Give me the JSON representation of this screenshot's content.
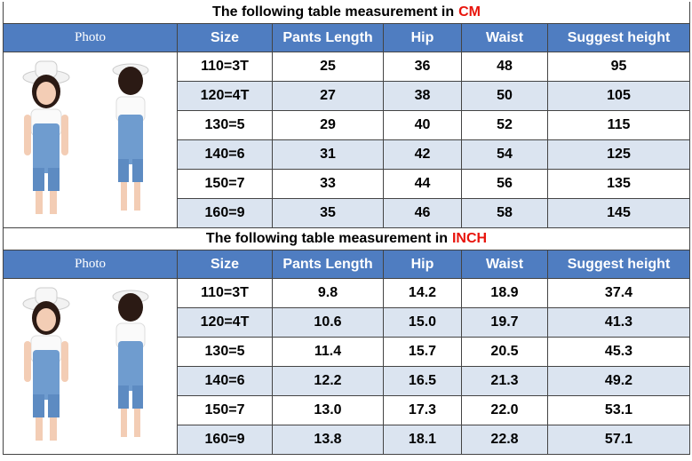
{
  "sections": [
    {
      "title": "The following table measurement in",
      "unit": "CM",
      "header": [
        "Photo",
        "Size",
        "Pants Length",
        "Hip",
        "Waist",
        "Suggest height"
      ],
      "rows": [
        [
          "110=3T",
          "25",
          "36",
          "48",
          "95"
        ],
        [
          "120=4T",
          "27",
          "38",
          "50",
          "105"
        ],
        [
          "130=5",
          "29",
          "40",
          "52",
          "115"
        ],
        [
          "140=6",
          "31",
          "42",
          "54",
          "125"
        ],
        [
          "150=7",
          "33",
          "44",
          "56",
          "135"
        ],
        [
          "160=9",
          "35",
          "46",
          "58",
          "145"
        ]
      ]
    },
    {
      "title": "The following table measurement in",
      "unit": "INCH",
      "header": [
        "Photo",
        "Size",
        "Pants Length",
        "Hip",
        "Waist",
        "Suggest height"
      ],
      "rows": [
        [
          "110=3T",
          "9.8",
          "14.2",
          "18.9",
          "37.4"
        ],
        [
          "120=4T",
          "10.6",
          "15.0",
          "19.7",
          "41.3"
        ],
        [
          "130=5",
          "11.4",
          "15.7",
          "20.5",
          "45.3"
        ],
        [
          "140=6",
          "12.2",
          "16.5",
          "21.3",
          "49.2"
        ],
        [
          "150=7",
          "13.0",
          "17.3",
          "22.0",
          "53.1"
        ],
        [
          "160=9",
          "13.8",
          "18.1",
          "22.8",
          "57.1"
        ]
      ]
    }
  ]
}
